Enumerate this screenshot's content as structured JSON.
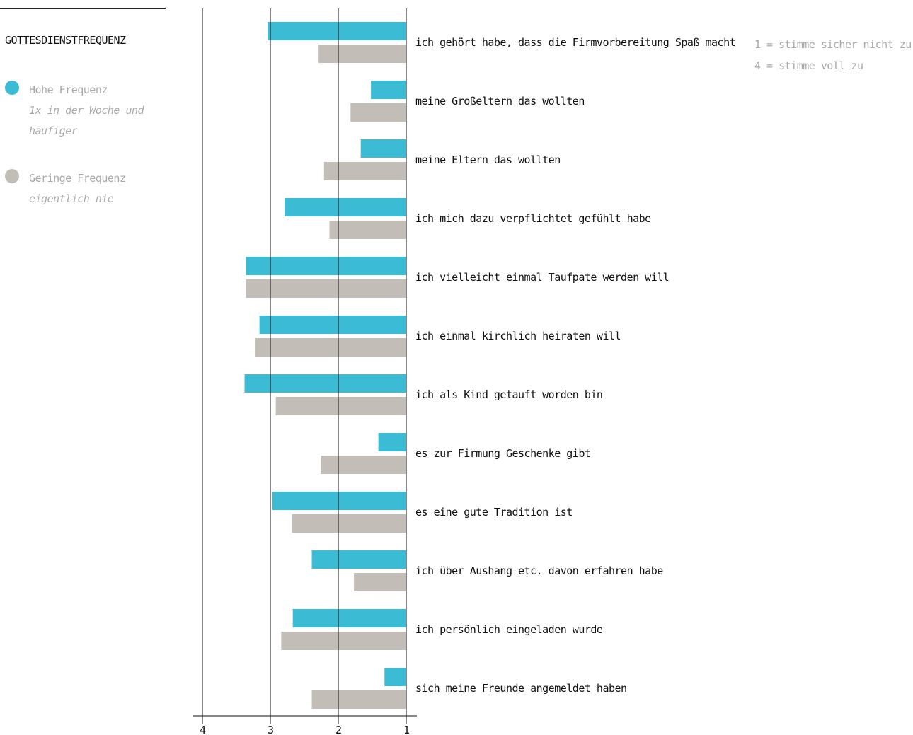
{
  "legend": {
    "title": "GOTTESDIENSTFREQUENZ",
    "items": [
      {
        "label": "Hohe Frequenz",
        "sub": "1x in der Woche und häufiger",
        "color": "#3bbcd4"
      },
      {
        "label": "Geringe Frequenz",
        "sub": "eigentlich nie",
        "color": "#c3bdb8"
      }
    ]
  },
  "scale_note": {
    "line1": "1 = stimme sicher nicht zu",
    "line2": "4 = stimme voll zu"
  },
  "chart_data": {
    "type": "bar",
    "orientation": "horizontal",
    "x_reversed": true,
    "xlim": [
      1,
      4
    ],
    "xticks": [
      4,
      3,
      2,
      1
    ],
    "grid": true,
    "legend_position": "top-left",
    "categories": [
      "ich gehört habe, dass die Firmvorbereitung Spaß macht",
      "meine Großeltern das wollten",
      "meine Eltern das wollten",
      "ich mich dazu verpflichtet gefühlt habe",
      "ich vielleicht einmal Taufpate werden will",
      "ich einmal kirchlich heiraten will",
      "ich als Kind getauft worden bin",
      "es zur Firmung Geschenke gibt",
      "es eine gute Tradition ist",
      "ich über Aushang etc. davon erfahren habe",
      "ich persönlich eingeladen wurde",
      "sich meine Freunde angemeldet haben"
    ],
    "series": [
      {
        "name": "Hohe Frequenz",
        "color": "#3bbcd4",
        "values": [
          3.04,
          1.52,
          1.67,
          2.79,
          3.36,
          3.16,
          3.38,
          1.41,
          2.97,
          2.39,
          2.67,
          1.32
        ]
      },
      {
        "name": "Geringe Frequenz",
        "color": "#c3bdb8",
        "values": [
          2.29,
          1.82,
          2.21,
          2.13,
          3.36,
          3.22,
          2.92,
          2.26,
          2.68,
          1.77,
          2.84,
          2.39
        ]
      }
    ]
  }
}
